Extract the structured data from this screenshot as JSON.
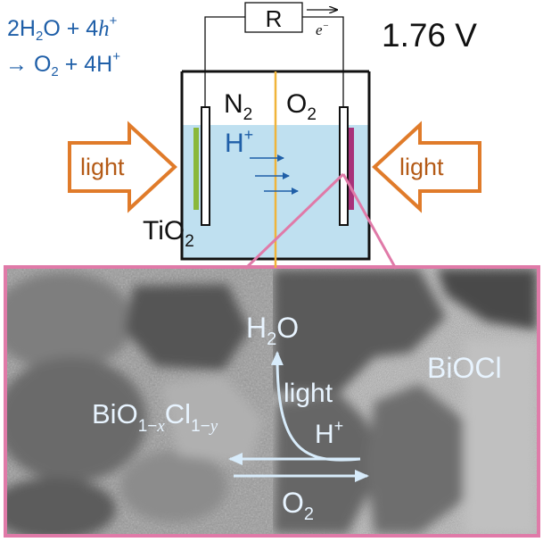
{
  "reaction": {
    "line1": {
      "a": "2H",
      "a_sub": "2",
      "b": "O + 4",
      "c": "h",
      "c_sup": "+"
    },
    "line2": {
      "arrow": "→",
      "a": " O",
      "a_sub": "2",
      "b": " + 4H",
      "b_sup": "+"
    }
  },
  "voltage": "1.76 V",
  "resistor": {
    "label": "R"
  },
  "electron": {
    "symbol": "e",
    "sup": "−"
  },
  "cell": {
    "left_gas": {
      "main": "N",
      "sub": "2"
    },
    "right_gas": {
      "main": "O",
      "sub": "2"
    },
    "proton": {
      "main": "H",
      "sup": "+"
    },
    "left_electrode": {
      "main": "TiO",
      "sub": "2"
    },
    "left_light": "light",
    "right_light": "light"
  },
  "micrograph": {
    "left_material": {
      "a": "BiO",
      "a_sub": "1−",
      "x": "x",
      "b": "Cl",
      "b_sub": "1−",
      "y": "y"
    },
    "right_material": "BiOCl",
    "water": {
      "main": "H",
      "sub": "2",
      "tail": "O"
    },
    "light": "light",
    "proton": {
      "main": "H",
      "sup": "+"
    },
    "oxygen": {
      "main": "O",
      "sub": "2"
    }
  },
  "colors": {
    "equation_blue": "#1f5fa8",
    "light_arrow_orange": "#e07b2a",
    "inset_pink": "#e07aa8",
    "electrolyte": "#bfe0f0",
    "membrane": "#f0b43a",
    "tio2_film": "#8ab83a",
    "biocl_film": "#a8327a",
    "annotation_white_blue": "#e8f4ff"
  }
}
